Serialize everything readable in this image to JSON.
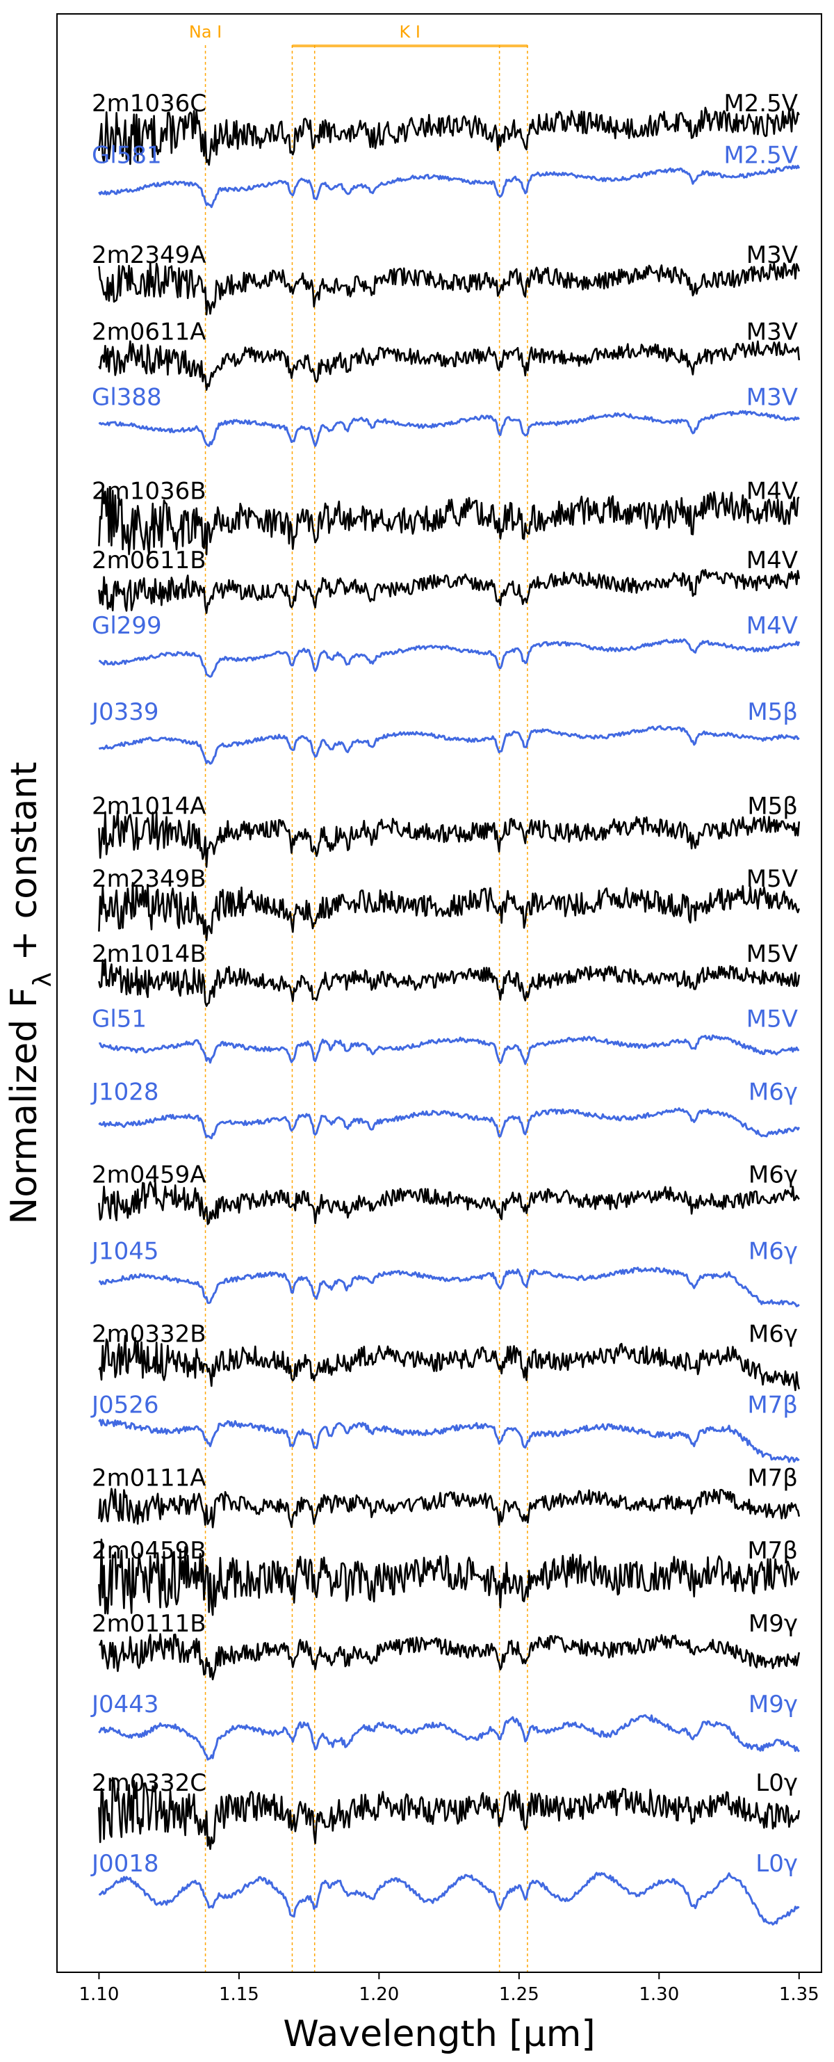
{
  "chart_data": {
    "type": "line",
    "title": "",
    "xlabel": "Wavelength [μm]",
    "ylabel": "Normalized F_λ + constant",
    "xlim": [
      1.085,
      1.358
    ],
    "ylim": [
      0,
      1
    ],
    "xticks": [
      "1.10",
      "1.15",
      "1.20",
      "1.25",
      "1.30",
      "1.35"
    ],
    "xtick_values": [
      1.1,
      1.15,
      1.2,
      1.25,
      1.3,
      1.35
    ],
    "colors": {
      "target": "#000000",
      "template": "#4169E1",
      "lines": "#FFA500"
    },
    "line_labels": [
      {
        "text": "Na I",
        "x": [
          1.138
        ]
      },
      {
        "text": "K I",
        "x": [
          1.169,
          1.177,
          1.243,
          1.253
        ]
      }
    ],
    "line_positions": [
      1.138,
      1.169,
      1.177,
      1.243,
      1.253
    ],
    "series": [
      {
        "name": "2m1036C",
        "spt": "M2.5V",
        "kind": "target",
        "offset": 0.955,
        "slope": 0.01,
        "noise": 0.006,
        "drop": 0.0,
        "jag": 0.0
      },
      {
        "name": "Gl581",
        "spt": "M2.5V",
        "kind": "template",
        "offset": 0.928,
        "slope": 0.012,
        "noise": 0.001,
        "drop": 0.0,
        "jag": 0.0
      },
      {
        "name": "2m2349A",
        "spt": "M3V",
        "kind": "target",
        "offset": 0.876,
        "slope": 0.006,
        "noise": 0.0045,
        "drop": 0.0,
        "jag": 0.0
      },
      {
        "name": "2m0611A",
        "spt": "M3V",
        "kind": "target",
        "offset": 0.836,
        "slope": 0.006,
        "noise": 0.004,
        "drop": 0.0,
        "jag": 0.0
      },
      {
        "name": "Gl388",
        "spt": "M3V",
        "kind": "template",
        "offset": 0.802,
        "slope": 0.008,
        "noise": 0.001,
        "drop": 0.0,
        "jag": 0.0
      },
      {
        "name": "2m1036B",
        "spt": "M4V",
        "kind": "target",
        "offset": 0.753,
        "slope": 0.01,
        "noise": 0.0075,
        "drop": 0.0,
        "jag": 0.0
      },
      {
        "name": "2m0611B",
        "spt": "M4V",
        "kind": "target",
        "offset": 0.717,
        "slope": 0.008,
        "noise": 0.004,
        "drop": 0.0,
        "jag": 0.0
      },
      {
        "name": "Gl299",
        "spt": "M4V",
        "kind": "template",
        "offset": 0.683,
        "slope": 0.012,
        "noise": 0.001,
        "drop": 0.003,
        "jag": 0.0
      },
      {
        "name": "J0339",
        "spt": "M5β",
        "kind": "template",
        "offset": 0.638,
        "slope": 0.01,
        "noise": 0.001,
        "drop": 0.006,
        "jag": 0.0
      },
      {
        "name": "2m1014A",
        "spt": "M5β",
        "kind": "target",
        "offset": 0.589,
        "slope": 0.004,
        "noise": 0.005,
        "drop": 0.0,
        "jag": 0.0
      },
      {
        "name": "2m2349B",
        "spt": "M5V",
        "kind": "target",
        "offset": 0.551,
        "slope": 0.004,
        "noise": 0.006,
        "drop": 0.0,
        "jag": 0.0
      },
      {
        "name": "2m1014B",
        "spt": "M5V",
        "kind": "target",
        "offset": 0.512,
        "slope": 0.004,
        "noise": 0.004,
        "drop": 0.0,
        "jag": 0.0
      },
      {
        "name": "Gl51",
        "spt": "M5V",
        "kind": "template",
        "offset": 0.478,
        "slope": 0.004,
        "noise": 0.0012,
        "drop": 0.004,
        "jag": 0.0
      },
      {
        "name": "J1028",
        "spt": "M6γ",
        "kind": "template",
        "offset": 0.44,
        "slope": 0.006,
        "noise": 0.0012,
        "drop": 0.01,
        "jag": 0.0
      },
      {
        "name": "2m0459A",
        "spt": "M6γ",
        "kind": "target",
        "offset": 0.397,
        "slope": 0.002,
        "noise": 0.004,
        "drop": 0.0,
        "jag": 0.0
      },
      {
        "name": "J1045",
        "spt": "M6γ",
        "kind": "template",
        "offset": 0.357,
        "slope": 0.006,
        "noise": 0.0012,
        "drop": 0.018,
        "jag": 0.0
      },
      {
        "name": "2m0332B",
        "spt": "M6γ",
        "kind": "target",
        "offset": 0.314,
        "slope": 0.004,
        "noise": 0.005,
        "drop": 0.012,
        "jag": 0.0
      },
      {
        "name": "J0526",
        "spt": "M7β",
        "kind": "template",
        "offset": 0.277,
        "slope": -0.004,
        "noise": 0.0015,
        "drop": 0.012,
        "jag": 0.0
      },
      {
        "name": "2m0111A",
        "spt": "M7β",
        "kind": "target",
        "offset": 0.239,
        "slope": 0.003,
        "noise": 0.004,
        "drop": 0.004,
        "jag": 0.0
      },
      {
        "name": "2m0459B",
        "spt": "M7β",
        "kind": "target",
        "offset": 0.201,
        "slope": 0.003,
        "noise": 0.009,
        "drop": 0.0,
        "jag": 0.0
      },
      {
        "name": "2m0111B",
        "spt": "M9γ",
        "kind": "target",
        "offset": 0.163,
        "slope": 0.006,
        "noise": 0.004,
        "drop": 0.01,
        "jag": 0.0
      },
      {
        "name": "J0443",
        "spt": "M9γ",
        "kind": "template",
        "offset": 0.121,
        "slope": 0.006,
        "noise": 0.0015,
        "drop": 0.014,
        "jag": 0.003
      },
      {
        "name": "2m0332C",
        "spt": "L0γ",
        "kind": "target",
        "offset": 0.08,
        "slope": 0.006,
        "noise": 0.007,
        "drop": 0.008,
        "jag": 0.0
      },
      {
        "name": "J0018",
        "spt": "L0γ",
        "kind": "template",
        "offset": 0.038,
        "slope": 0.004,
        "noise": 0.0012,
        "drop": 0.014,
        "jag": 0.005
      }
    ]
  }
}
